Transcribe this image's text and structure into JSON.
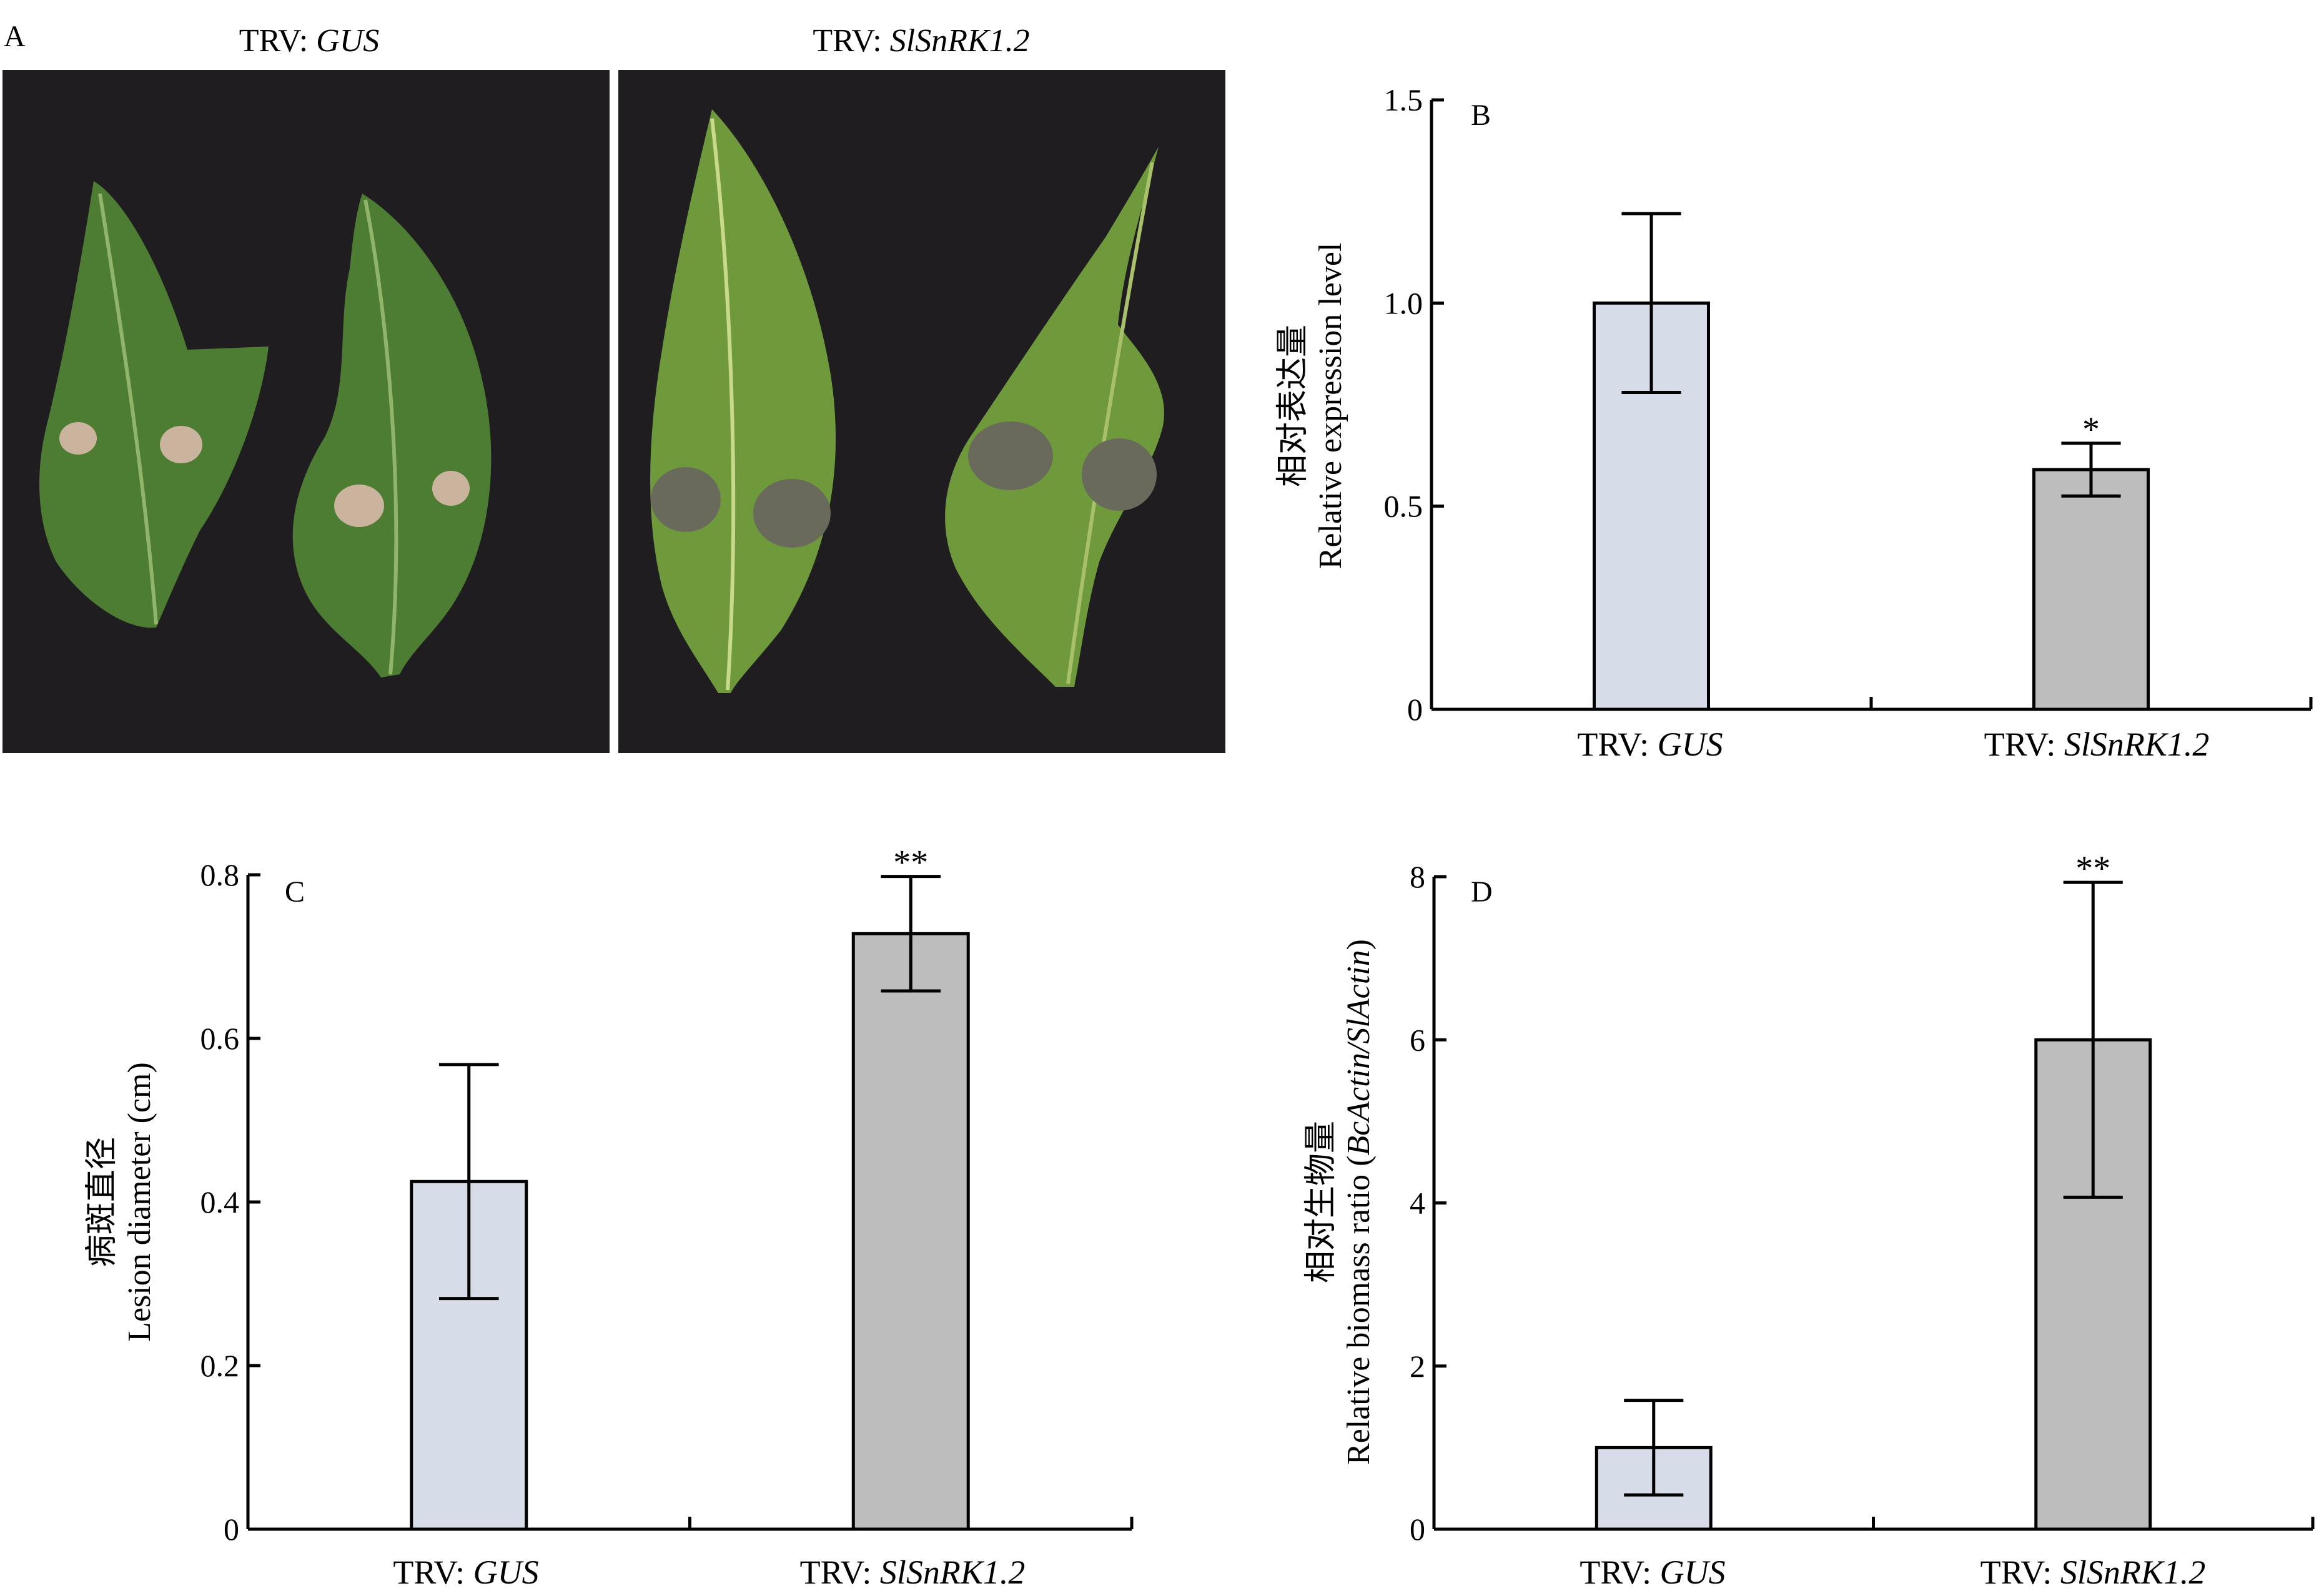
{
  "panel_a": {
    "letter": "A",
    "photos": [
      {
        "prefix": "TRV: ",
        "gene": "GUS",
        "bg": "#1f1d20",
        "leaf": "#4d7c33",
        "lesion": "#cbb49e"
      },
      {
        "prefix": "TRV: ",
        "gene": "SlSnRK1.2",
        "bg": "#1f1d20",
        "leaf": "#6e9a3c",
        "lesion": "#6a6a5c"
      }
    ]
  },
  "colors": {
    "gus_bar": "#d7dde8",
    "snrk_bar": "#bdbdbd",
    "axis": "#000000"
  },
  "chart_data": [
    {
      "type": "bar",
      "panel": "B",
      "categories": [
        {
          "prefix": "TRV: ",
          "gene": "GUS"
        },
        {
          "prefix": "TRV: ",
          "gene": "SlSnRK1.2"
        }
      ],
      "values": [
        1.0,
        0.59
      ],
      "errors": [
        0.22,
        0.065
      ],
      "significance": [
        "",
        "*"
      ],
      "ylabel_cn": "相对表达量",
      "ylabel_en": "Relative expression level",
      "ylabel_italic": "",
      "ylabel_tail": "",
      "ylim": [
        0,
        1.5
      ],
      "ticks": [
        {
          "value": 0,
          "label": "0"
        },
        {
          "value": 0.5,
          "label": "0.5"
        },
        {
          "value": 1.0,
          "label": "1.0"
        },
        {
          "value": 1.5,
          "label": "1.5"
        }
      ]
    },
    {
      "type": "bar",
      "panel": "C",
      "categories": [
        {
          "prefix": "TRV: ",
          "gene": "GUS"
        },
        {
          "prefix": "TRV: ",
          "gene": "SlSnRK1.2"
        }
      ],
      "values": [
        0.425,
        0.728
      ],
      "errors": [
        0.143,
        0.07
      ],
      "significance": [
        "",
        "**"
      ],
      "ylabel_cn": "病斑直径",
      "ylabel_en": "Lesion diameter (cm)",
      "ylabel_italic": "",
      "ylabel_tail": "",
      "ylim": [
        0,
        0.8
      ],
      "ticks": [
        {
          "value": 0,
          "label": "0"
        },
        {
          "value": 0.2,
          "label": "0.2"
        },
        {
          "value": 0.4,
          "label": "0.4"
        },
        {
          "value": 0.6,
          "label": "0.6"
        },
        {
          "value": 0.8,
          "label": "0.8"
        }
      ]
    },
    {
      "type": "bar",
      "panel": "D",
      "categories": [
        {
          "prefix": "TRV: ",
          "gene": "GUS"
        },
        {
          "prefix": "TRV: ",
          "gene": "SlSnRK1.2"
        }
      ],
      "values": [
        1.0,
        6.0
      ],
      "errors": [
        0.58,
        1.93
      ],
      "significance": [
        "",
        "**"
      ],
      "ylabel_cn": "相对生物量",
      "ylabel_en": "Relative biomass ratio (",
      "ylabel_italic": "BcActin/SlActin",
      "ylabel_tail": ")",
      "ylim": [
        0,
        8
      ],
      "ticks": [
        {
          "value": 0,
          "label": "0"
        },
        {
          "value": 2,
          "label": "2"
        },
        {
          "value": 4,
          "label": "4"
        },
        {
          "value": 6,
          "label": "6"
        },
        {
          "value": 8,
          "label": "8"
        }
      ]
    }
  ]
}
